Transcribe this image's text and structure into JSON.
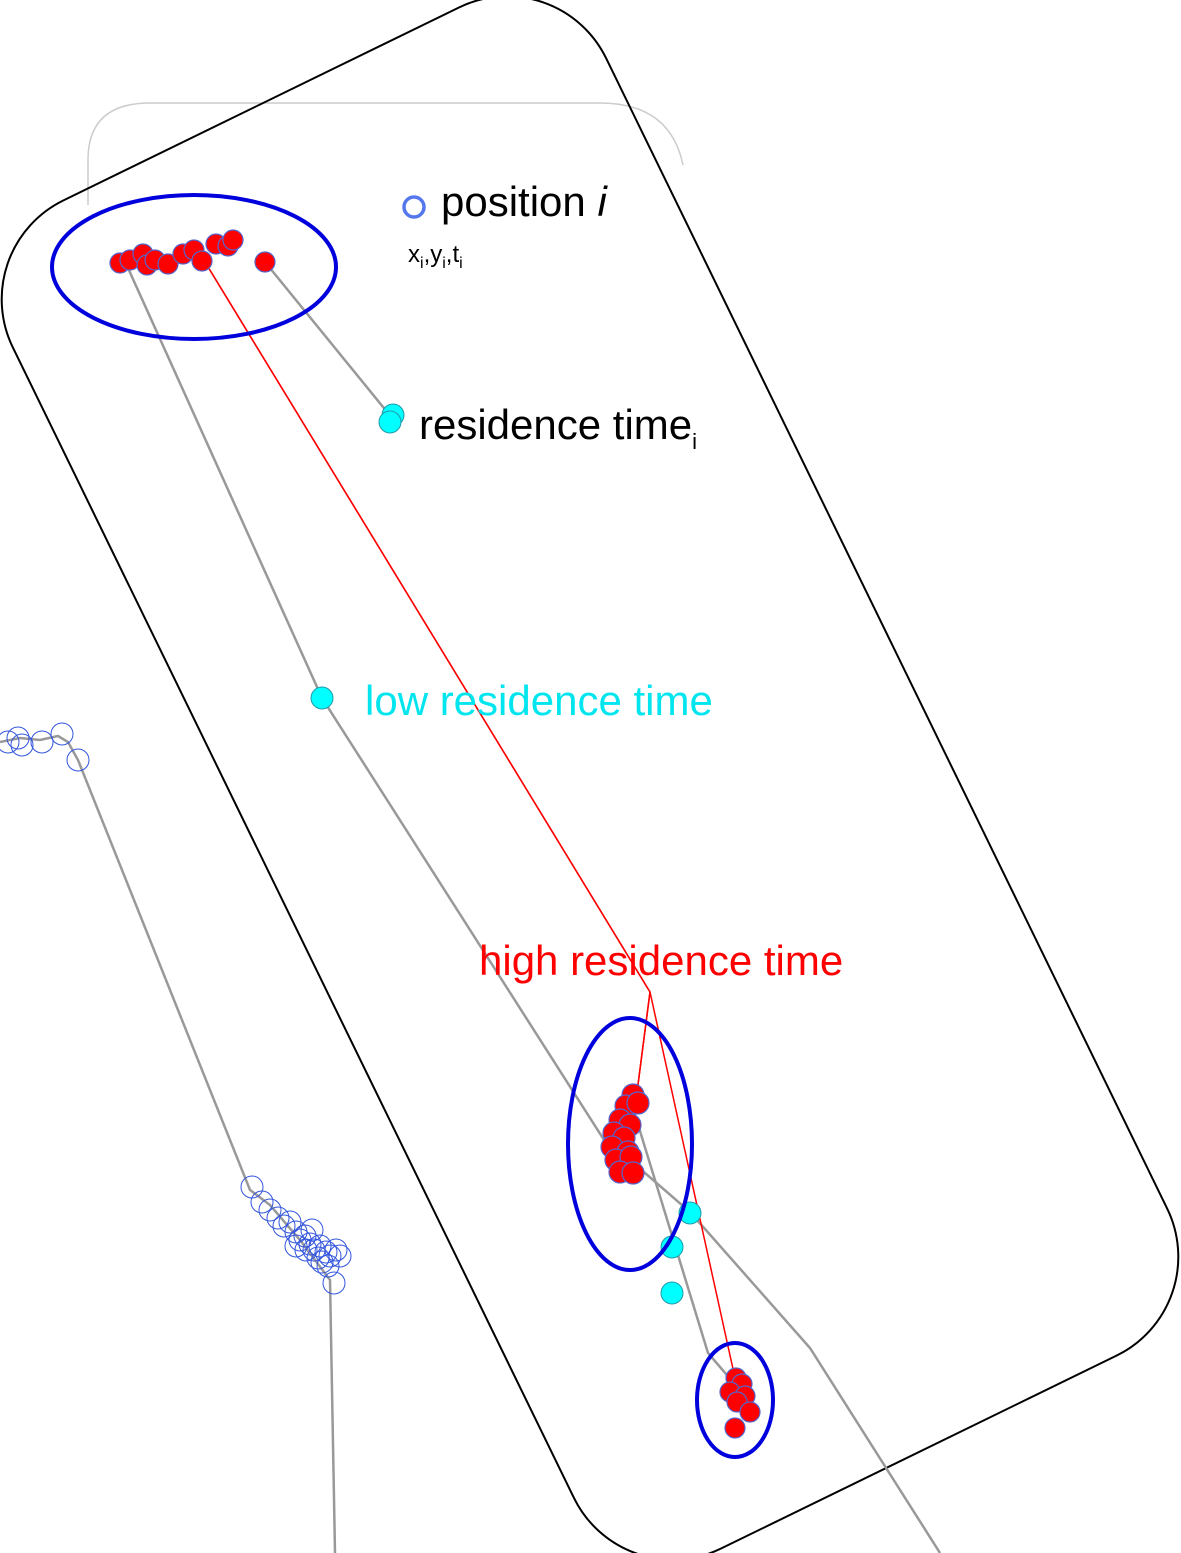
{
  "labels": {
    "position": "position",
    "position_var": "i",
    "coord_x": "x",
    "coord_y": "y",
    "coord_t": "t",
    "coord_sub": "i",
    "comma": ",",
    "residence": "residence time",
    "residence_sub": "i",
    "low": "low residence time",
    "high": "high residence time"
  },
  "colors": {
    "high_point": "#ff0000",
    "low_point": "#00ffff",
    "path": "#999999",
    "jump": "#ff0000",
    "cluster_ring": "#0000dd",
    "position_marker": "#5577ee",
    "frame": "#000000",
    "low_text": "#00e5ee",
    "high_text": "#ff0000"
  }
}
